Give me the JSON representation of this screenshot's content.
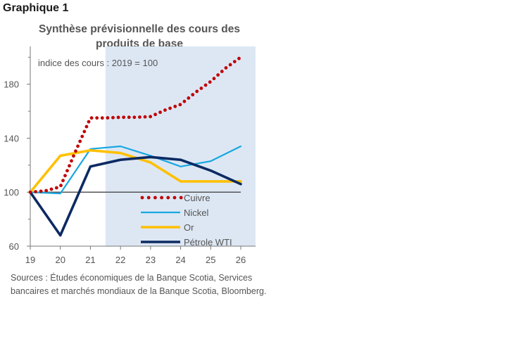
{
  "graph_label": "Graphique 1",
  "sources": "Sources : Études économiques de la Banque Scotia, Services bancaires et marchés mondiaux de la Banque Scotia, Bloomberg.",
  "colors": {
    "forecast_shade": "#dde7f4",
    "baseline": "#555555"
  },
  "chart_data": {
    "type": "line",
    "title": "Synthèse prévisionnelle des cours des produits de base",
    "annotation": "indice des cours : 2019 = 100",
    "xlabel": "",
    "ylabel": "",
    "x": [
      "19",
      "20",
      "21",
      "22",
      "23",
      "24",
      "25",
      "26"
    ],
    "x_range": [
      19,
      26
    ],
    "yticks": [
      60,
      100,
      140,
      180
    ],
    "ylim": [
      60,
      208
    ],
    "baseline": 100,
    "forecast_region": [
      21.5,
      26.5
    ],
    "grid": false,
    "legend_position": "lower-right",
    "series": [
      {
        "name": "Cuivre",
        "color": "#c00000",
        "style": "dotted",
        "points": [
          [
            19,
            100
          ],
          [
            19.5,
            101
          ],
          [
            20,
            104
          ],
          [
            20.5,
            130
          ],
          [
            21,
            155
          ],
          [
            21.5,
            155
          ],
          [
            22,
            155.5
          ],
          [
            22.5,
            155.5
          ],
          [
            23,
            156
          ],
          [
            23.5,
            161
          ],
          [
            24,
            165
          ],
          [
            24.5,
            174
          ],
          [
            25,
            182
          ],
          [
            25.5,
            192
          ],
          [
            26,
            200
          ]
        ]
      },
      {
        "name": "Nickel",
        "color": "#18a7e1",
        "style": "solid",
        "points": [
          [
            19,
            100
          ],
          [
            20,
            99
          ],
          [
            21,
            132
          ],
          [
            22,
            134
          ],
          [
            23,
            127
          ],
          [
            24,
            119
          ],
          [
            24.5,
            121
          ],
          [
            25,
            123
          ],
          [
            26,
            134
          ]
        ]
      },
      {
        "name": "Or",
        "color": "#ffc000",
        "style": "solid",
        "points": [
          [
            19,
            100
          ],
          [
            20,
            127
          ],
          [
            21,
            131
          ],
          [
            22,
            129
          ],
          [
            23,
            122
          ],
          [
            24,
            108
          ],
          [
            25,
            108
          ],
          [
            26,
            108
          ]
        ]
      },
      {
        "name": "Pétrole WTI",
        "color": "#0c2a63",
        "style": "solid",
        "points": [
          [
            19,
            100
          ],
          [
            20,
            68
          ],
          [
            21,
            119
          ],
          [
            22,
            124
          ],
          [
            23,
            126
          ],
          [
            24,
            124
          ],
          [
            25,
            116
          ],
          [
            26,
            106
          ]
        ]
      }
    ]
  }
}
